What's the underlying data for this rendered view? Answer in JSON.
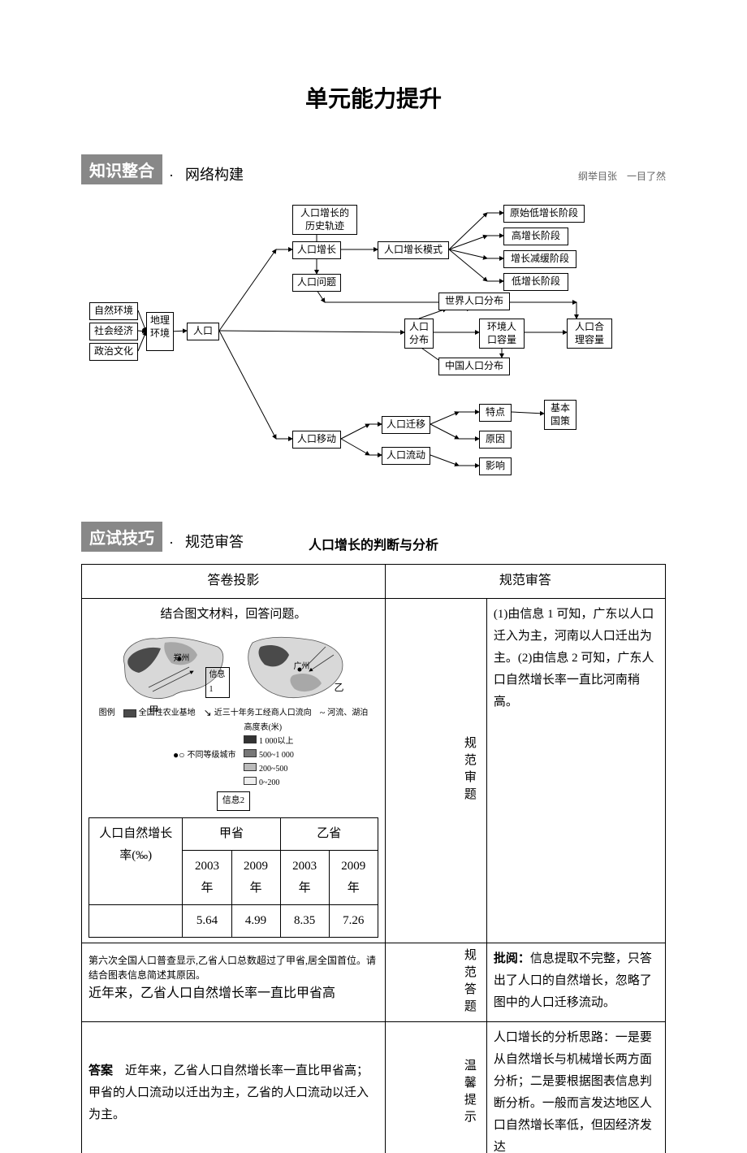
{
  "title": "单元能力提升",
  "sections": {
    "s1": {
      "label": "知识整合",
      "dot": "·",
      "sub": "网络构建",
      "caption": "纲举目张　一目了然"
    },
    "s2": {
      "label": "应试技巧",
      "dot": "·",
      "sub": "规范审答",
      "subtitle": "人口增长的判断与分析"
    }
  },
  "flowchart": {
    "nodes": {
      "n_ziranzhenghuanjing": "自然环境",
      "n_shehui": "社会经济",
      "n_zhengzhi": "政治文化",
      "n_dili": "地理\n环境",
      "n_renkou": "人口",
      "n_zengzhang": "人口增长",
      "n_guiji": "人口增长的\n历史轨迹",
      "n_wenti": "人口问题",
      "n_moshi": "人口增长模式",
      "n_yuanshi": "原始低增长阶段",
      "n_gaozeng": "高增长阶段",
      "n_jianhuan": "增长减缓阶段",
      "n_dizeng": "低增长阶段",
      "n_fenbu": "人口\n分布",
      "n_shijie": "世界人口分布",
      "n_huanjingrl": "环境人\n口容量",
      "n_heli": "人口合\n理容量",
      "n_zhongguo": "中国人口分布",
      "n_yidong": "人口移动",
      "n_qianyi": "人口迁移",
      "n_liudong": "人口流动",
      "n_tedian": "特点",
      "n_yuyin": "原因",
      "n_yingxiang": "影响",
      "n_guoce": "基本\n国策"
    },
    "positions": {
      "n_ziranzhenghuanjing": [
        10,
        130,
        60,
        20
      ],
      "n_shehui": [
        10,
        155,
        60,
        20
      ],
      "n_zhengzhi": [
        10,
        180,
        60,
        20
      ],
      "n_dili": [
        80,
        142,
        30,
        48
      ],
      "n_renkou": [
        130,
        155,
        40,
        20
      ],
      "n_zengzhang": [
        260,
        55,
        60,
        20
      ],
      "n_guiji": [
        260,
        10,
        80,
        32
      ],
      "n_wenti": [
        260,
        95,
        60,
        20
      ],
      "n_moshi": [
        365,
        55,
        88,
        20
      ],
      "n_yuanshi": [
        520,
        10,
        100,
        20
      ],
      "n_gaozeng": [
        520,
        38,
        80,
        20
      ],
      "n_jianhuan": [
        520,
        66,
        90,
        20
      ],
      "n_dizeng": [
        520,
        94,
        80,
        20
      ],
      "n_fenbu": [
        398,
        150,
        36,
        34
      ],
      "n_shijie": [
        440,
        118,
        88,
        20
      ],
      "n_huanjingrl": [
        490,
        150,
        56,
        34
      ],
      "n_heli": [
        598,
        150,
        56,
        34
      ],
      "n_zhongguo": [
        440,
        198,
        88,
        20
      ],
      "n_yidong": [
        260,
        288,
        60,
        20
      ],
      "n_qianyi": [
        370,
        270,
        60,
        20
      ],
      "n_liudong": [
        370,
        308,
        60,
        20
      ],
      "n_tedian": [
        490,
        255,
        40,
        20
      ],
      "n_yuyin": [
        490,
        288,
        40,
        20
      ],
      "n_yingxiang": [
        490,
        321,
        40,
        20
      ],
      "n_guoce": [
        570,
        250,
        40,
        34
      ]
    },
    "edges": [
      [
        70,
        140,
        80,
        166
      ],
      [
        70,
        165,
        80,
        166
      ],
      [
        70,
        190,
        80,
        166
      ],
      [
        110,
        166,
        130,
        165
      ],
      [
        170,
        165,
        240,
        65
      ],
      [
        240,
        65,
        260,
        65
      ],
      [
        170,
        165,
        240,
        298
      ],
      [
        240,
        298,
        260,
        298
      ],
      [
        170,
        165,
        398,
        167
      ],
      [
        290,
        55,
        290,
        42
      ],
      [
        290,
        75,
        290,
        95
      ],
      [
        320,
        65,
        365,
        65
      ],
      [
        453,
        65,
        500,
        20
      ],
      [
        500,
        20,
        520,
        20
      ],
      [
        453,
        65,
        500,
        48
      ],
      [
        500,
        48,
        520,
        48
      ],
      [
        453,
        65,
        500,
        76
      ],
      [
        500,
        76,
        520,
        76
      ],
      [
        453,
        65,
        500,
        104
      ],
      [
        500,
        104,
        520,
        104
      ],
      [
        416,
        150,
        450,
        138
      ],
      [
        450,
        138,
        480,
        138
      ],
      [
        480,
        138,
        480,
        128
      ],
      [
        416,
        184,
        450,
        208
      ],
      [
        450,
        208,
        480,
        208
      ],
      [
        480,
        208,
        480,
        218
      ],
      [
        434,
        167,
        490,
        167
      ],
      [
        546,
        167,
        598,
        167
      ],
      [
        518,
        184,
        518,
        198
      ],
      [
        320,
        298,
        355,
        280
      ],
      [
        355,
        280,
        370,
        280
      ],
      [
        320,
        298,
        355,
        318
      ],
      [
        355,
        318,
        370,
        318
      ],
      [
        430,
        280,
        465,
        265
      ],
      [
        465,
        265,
        490,
        265
      ],
      [
        430,
        280,
        465,
        298
      ],
      [
        465,
        298,
        490,
        298
      ],
      [
        430,
        318,
        465,
        331
      ],
      [
        465,
        331,
        490,
        331
      ],
      [
        530,
        265,
        570,
        267
      ],
      [
        290,
        115,
        300,
        130
      ],
      [
        300,
        130,
        610,
        130
      ],
      [
        610,
        130,
        610,
        150
      ]
    ]
  },
  "table": {
    "headers": {
      "col1": "答卷投影",
      "col2": "规范审答"
    },
    "row1": {
      "prompt": "结合图文材料，回答问题。",
      "map_label_jia": "甲",
      "map_label_yi": "乙",
      "map_city1": "郑州",
      "map_city2": "广州",
      "info1_label": "信息1",
      "legend_label": "图例",
      "legend": {
        "l1": "全国性农业基地",
        "l2": "近三十年务工经商人口流向",
        "l3": "河流、湖泊",
        "l4": "不同等级城市",
        "l5_title": "高度表(米)",
        "l5a": "1 000以上",
        "l5b": "500~1 000",
        "l5c": "200~500",
        "l5d": "0~200"
      },
      "info2_label": "信息2",
      "inner_table": {
        "rowhead": "人口自然增长率(‰)",
        "jia": "甲省",
        "yi": "乙省",
        "y2003": "2003 年",
        "y2009": "2009 年",
        "v1": "5.64",
        "v2": "4.99",
        "v3": "8.35",
        "v4": "7.26"
      },
      "v_label": "规范审题",
      "answer": "(1)由信息 1 可知，广东以人口迁入为主，河南以人口迁出为主。(2)由信息 2 可知，广东人口自然增长率一直比河南稍高。"
    },
    "row2": {
      "question": "第六次全国人口普查显示,乙省人口总数超过了甲省,居全国首位。请结合图表信息简述其原因。",
      "handwrite": "近年来，乙省人口自然增长率一直比甲省高",
      "v_label": "规范答题",
      "answer_label": "批阅：",
      "answer": "信息提取不完整，只答出了人口的自然增长，忽略了图中的人口迁移流动。"
    },
    "row3": {
      "ans_label": "答案",
      "ans": "　近年来，乙省人口自然增长率一直比甲省高；甲省的人口流动以迁出为主，乙省的人口流动以迁入为主。",
      "v_label": "温馨提示",
      "answer": "人口增长的分析思路：一是要从自然增长与机械增长两方面分析；二是要根据图表信息判断分析。一般而言发达地区人口自然增长率低，但因经济发达"
    }
  },
  "colors": {
    "section_bg": "#888888",
    "section_fg": "#ffffff",
    "border": "#000000",
    "map_dark": "#4a4a4a",
    "map_light": "#d8d8d8",
    "map_mid": "#a8a8a8"
  }
}
